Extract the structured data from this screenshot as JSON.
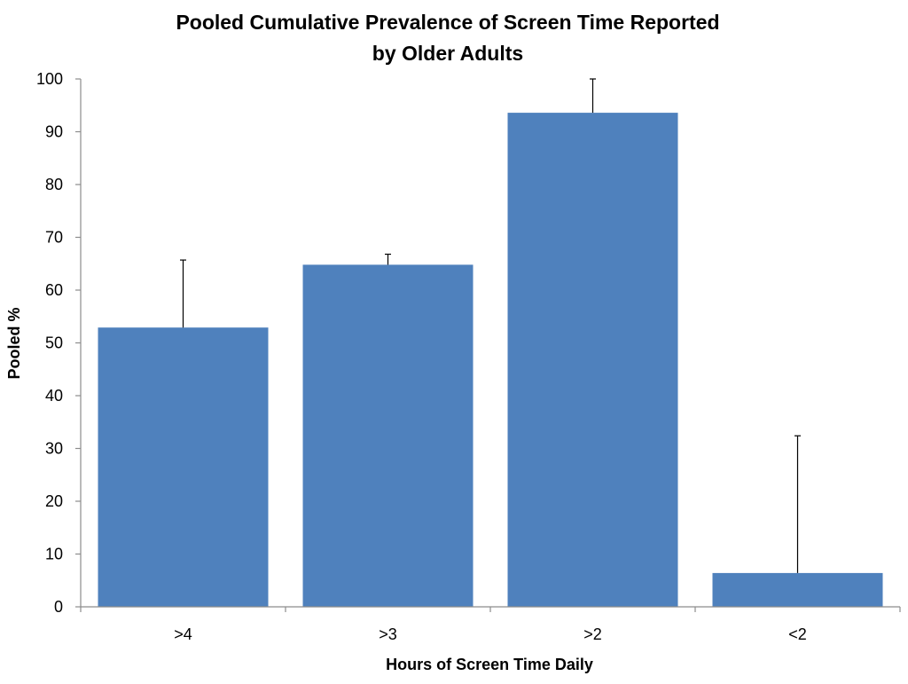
{
  "chart_data": {
    "type": "bar",
    "title_line1": "Pooled Cumulative Prevalence of Screen Time Reported",
    "title_line2": "by Older Adults",
    "xlabel": "Hours of Screen Time Daily",
    "ylabel": "Pooled %",
    "categories": [
      ">4",
      ">3",
      ">2",
      "<2"
    ],
    "values": [
      52.9,
      64.8,
      93.6,
      6.4
    ],
    "error_upper": [
      65.7,
      66.8,
      100,
      32.4
    ],
    "ylim": [
      0,
      100
    ],
    "yticks": [
      0,
      10,
      20,
      30,
      40,
      50,
      60,
      70,
      80,
      90,
      100
    ],
    "bar_color": "#4F81BD",
    "grid": false,
    "legend": "none"
  }
}
